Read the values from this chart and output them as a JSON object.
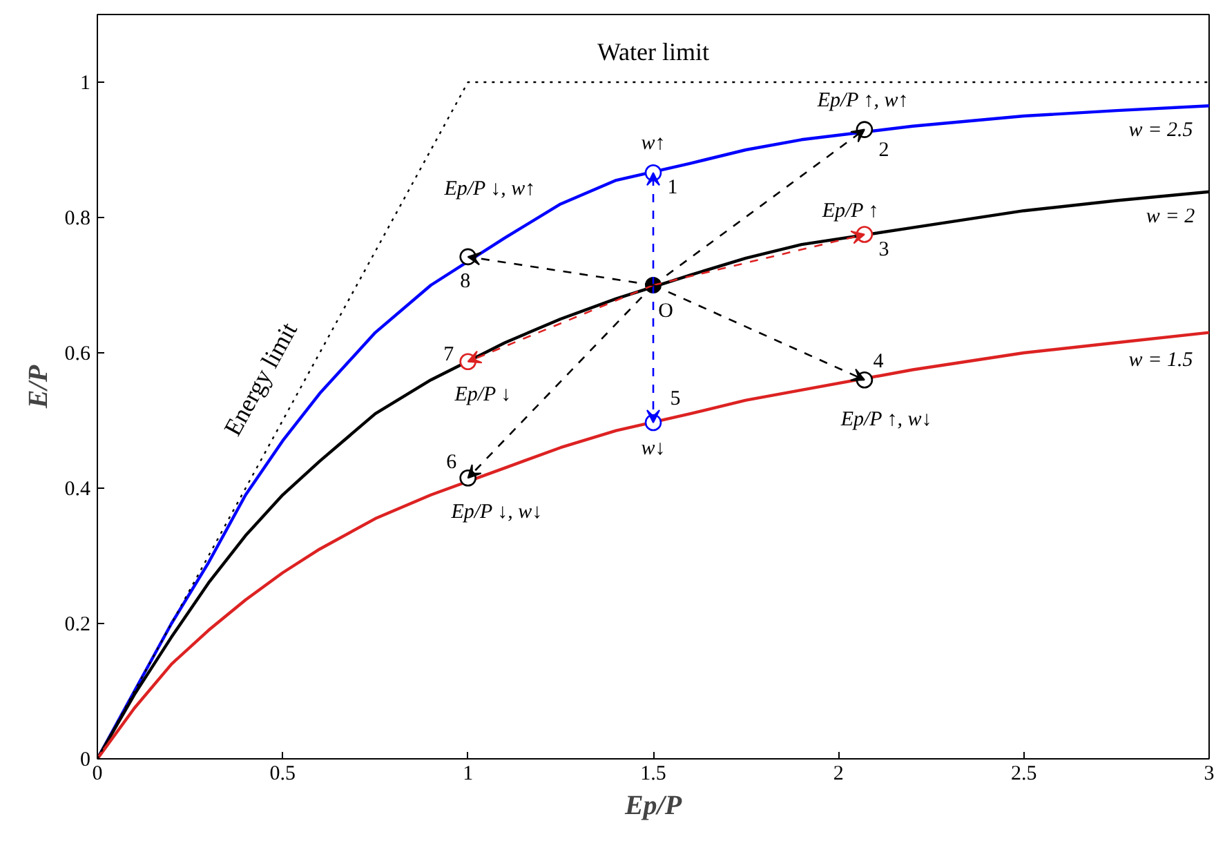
{
  "chart_data": {
    "type": "line",
    "xlabel": "Ep/P",
    "ylabel": "E/P",
    "xlim": [
      0,
      3
    ],
    "ylim": [
      0,
      1.1
    ],
    "xticks": [
      0,
      0.5,
      1,
      1.5,
      2,
      2.5,
      3
    ],
    "yticks": [
      0,
      0.2,
      0.4,
      0.6,
      0.8,
      1
    ],
    "grid": false,
    "series": [
      {
        "color": "#0000ff",
        "x": [
          0,
          0.1,
          0.2,
          0.3,
          0.4,
          0.5,
          0.6,
          0.75,
          0.9,
          1.1,
          1.25,
          1.4,
          1.6,
          1.75,
          1.9,
          2.2,
          2.5,
          2.75,
          3
        ],
        "values": [
          0,
          0.1,
          0.2,
          0.29,
          0.39,
          0.47,
          0.54,
          0.63,
          0.7,
          0.77,
          0.82,
          0.855,
          0.88,
          0.9,
          0.915,
          0.935,
          0.95,
          0.958,
          0.965
        ]
      },
      {
        "color": "#000000",
        "x": [
          0,
          0.1,
          0.2,
          0.3,
          0.4,
          0.5,
          0.6,
          0.75,
          0.9,
          1.1,
          1.25,
          1.4,
          1.6,
          1.75,
          1.9,
          2.2,
          2.5,
          2.75,
          3
        ],
        "values": [
          0,
          0.095,
          0.18,
          0.26,
          0.33,
          0.39,
          0.44,
          0.51,
          0.56,
          0.615,
          0.65,
          0.68,
          0.715,
          0.74,
          0.76,
          0.785,
          0.81,
          0.825,
          0.838
        ]
      },
      {
        "color": "#dd2222",
        "x": [
          0,
          0.1,
          0.2,
          0.3,
          0.4,
          0.5,
          0.6,
          0.75,
          0.9,
          1.1,
          1.25,
          1.4,
          1.6,
          1.75,
          1.9,
          2.2,
          2.5,
          2.75,
          3
        ],
        "values": [
          0,
          0.075,
          0.14,
          0.19,
          0.235,
          0.275,
          0.31,
          0.355,
          0.39,
          0.43,
          0.46,
          0.485,
          0.51,
          0.53,
          0.545,
          0.575,
          0.6,
          0.615,
          0.63
        ]
      },
      {
        "color": "#000000",
        "line_style": "dotted",
        "x": [
          0,
          1,
          3
        ],
        "values": [
          0,
          1,
          1
        ]
      },
      {
        "type": "scatter",
        "marker": "circle",
        "color": "#000000",
        "x": [
          1.5
        ],
        "values": [
          0.7
        ]
      },
      {
        "type": "scatter",
        "marker": "circle",
        "colors": [
          "#0000ff",
          "#000000",
          "#dd2222",
          "#000000",
          "#0000ff",
          "#000000",
          "#dd2222",
          "#000000"
        ],
        "x": [
          1.5,
          2.07,
          2.07,
          2.07,
          1.5,
          1,
          1,
          1
        ],
        "values": [
          0.866,
          0.93,
          0.775,
          0.56,
          0.497,
          0.415,
          0.587,
          0.742
        ]
      }
    ],
    "annotations": [
      {
        "text": "Water limit",
        "x": 1.5,
        "y": 1
      },
      {
        "text": "Energy limit",
        "x": 0.5,
        "y": 0.5
      },
      {
        "text": "w = 2.5",
        "x": 3,
        "y": 0.965
      },
      {
        "text": "w = 2",
        "x": 3,
        "y": 0.838
      },
      {
        "text": "w = 1.5",
        "x": 3,
        "y": 0.63
      },
      {
        "text": "w↑",
        "x": 1.5,
        "y": 0.866
      },
      {
        "text": "1",
        "x": 1.5,
        "y": 0.866
      },
      {
        "text": "Ep/P ↑, w↑",
        "x": 2.07,
        "y": 0.93
      },
      {
        "text": "2",
        "x": 2.07,
        "y": 0.93
      },
      {
        "text": "Ep/P ↑",
        "x": 2.07,
        "y": 0.775
      },
      {
        "text": "3",
        "x": 2.07,
        "y": 0.775
      },
      {
        "text": "4",
        "x": 2.07,
        "y": 0.56
      },
      {
        "text": "Ep/P ↑, w↓",
        "x": 2.07,
        "y": 0.56
      },
      {
        "text": "5",
        "x": 1.5,
        "y": 0.497
      },
      {
        "text": "w↓",
        "x": 1.5,
        "y": 0.497
      },
      {
        "text": "O",
        "x": 1.5,
        "y": 0.7
      },
      {
        "text": "6",
        "x": 1,
        "y": 0.415
      },
      {
        "text": "Ep/P ↓, w↓",
        "x": 1,
        "y": 0.415
      },
      {
        "text": "7",
        "x": 1,
        "y": 0.587
      },
      {
        "text": "Ep/P ↓",
        "x": 1,
        "y": 0.587
      },
      {
        "text": "8",
        "x": 1,
        "y": 0.742
      },
      {
        "text": "Ep/P ↓, w↑",
        "x": 1,
        "y": 0.742
      }
    ]
  }
}
